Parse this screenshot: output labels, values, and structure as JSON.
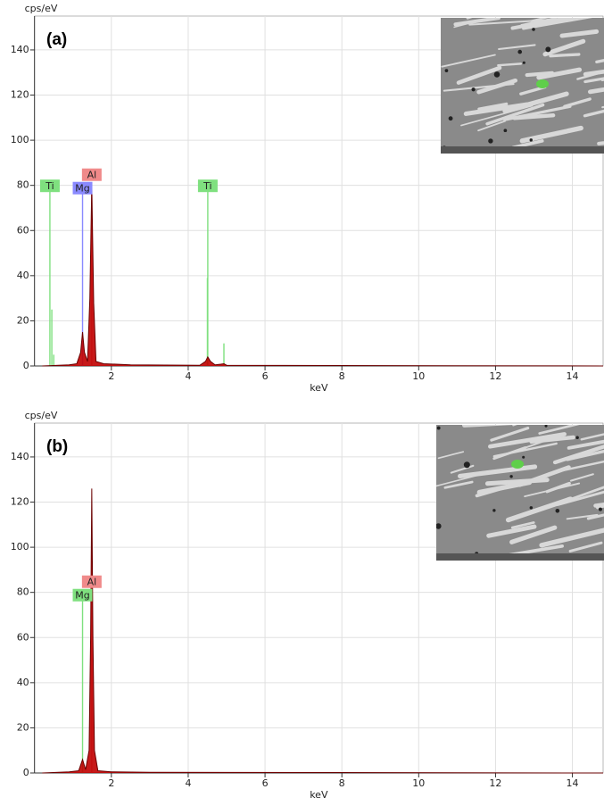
{
  "chart_data": [
    {
      "type": "spectrum",
      "panel_label": "(a)",
      "y_label": "cps/eV",
      "x_label": "keV",
      "xlim": [
        0,
        14.8
      ],
      "ylim": [
        0,
        155
      ],
      "xticks": [
        2,
        4,
        6,
        8,
        10,
        12,
        14
      ],
      "yticks": [
        0,
        20,
        40,
        60,
        80,
        100,
        120,
        140
      ],
      "grid": true,
      "x": [
        0.2,
        0.9,
        1.1,
        1.2,
        1.25,
        1.3,
        1.38,
        1.44,
        1.49,
        1.54,
        1.6,
        1.8,
        2.5,
        4.3,
        4.45,
        4.51,
        4.58,
        4.7,
        4.85,
        4.93,
        5.0,
        14.8
      ],
      "values": [
        0,
        0.5,
        1,
        6,
        15,
        6,
        2,
        30,
        80,
        28,
        2,
        1,
        0.5,
        0.3,
        2,
        4,
        2,
        0.5,
        0.8,
        1,
        0.3,
        0
      ],
      "color": "#c00000",
      "markers": [
        {
          "label": "Ti",
          "color": "#7fe07f",
          "x": [
            0.4,
            0.45,
            0.5
          ],
          "heights": [
            79,
            25,
            5
          ]
        },
        {
          "label": "Mg",
          "color": "#8a8aff",
          "x": [
            1.25
          ],
          "heights": [
            78
          ]
        },
        {
          "label": "Al",
          "color": "#f08a8a",
          "x": [
            1.49
          ],
          "heights": [
            78
          ]
        },
        {
          "label": "Ti",
          "color": "#7fe07f",
          "x": [
            4.51,
            4.5,
            4.93
          ],
          "heights": [
            79,
            39,
            10
          ]
        }
      ]
    },
    {
      "type": "spectrum",
      "panel_label": "(b)",
      "y_label": "cps/eV",
      "x_label": "keV",
      "xlim": [
        0,
        14.8
      ],
      "ylim": [
        0,
        155
      ],
      "xticks": [
        2,
        4,
        6,
        8,
        10,
        12,
        14
      ],
      "yticks": [
        0,
        20,
        40,
        60,
        80,
        100,
        120,
        140
      ],
      "grid": true,
      "x": [
        0.2,
        0.9,
        1.15,
        1.25,
        1.33,
        1.42,
        1.46,
        1.49,
        1.52,
        1.56,
        1.65,
        2,
        3,
        14.8
      ],
      "values": [
        0,
        0.5,
        1,
        6,
        1.5,
        10,
        60,
        126,
        60,
        10,
        1,
        0.5,
        0.3,
        0
      ],
      "color": "#c00000",
      "markers": [
        {
          "label": "Mg",
          "color": "#7fe07f",
          "x": [
            1.25
          ],
          "heights": [
            78
          ]
        },
        {
          "label": "Al",
          "color": "#f08a8a",
          "x": [
            1.49
          ],
          "heights": [
            78
          ]
        }
      ]
    }
  ]
}
